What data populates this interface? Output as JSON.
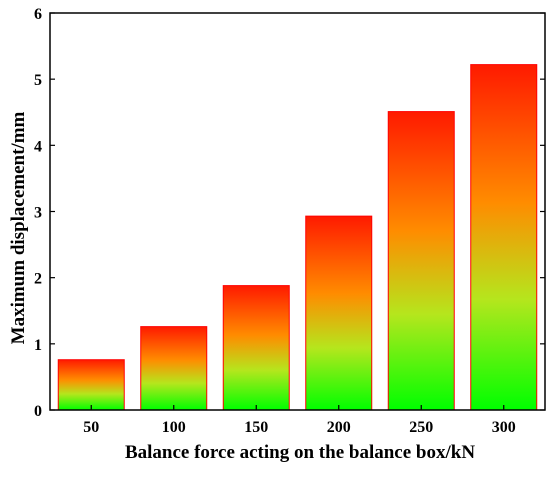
{
  "chart_data": {
    "type": "bar",
    "title": "",
    "xlabel": "Balance force acting on the balance box/kN",
    "ylabel": "Maximum displacement/mm",
    "categories": [
      "50",
      "100",
      "150",
      "200",
      "250",
      "300"
    ],
    "values": [
      0.76,
      1.26,
      1.88,
      2.93,
      4.51,
      5.22
    ],
    "ylim": [
      0,
      6
    ],
    "yticks": [
      "0",
      "1",
      "2",
      "3",
      "4",
      "5",
      "6"
    ],
    "grid": false,
    "legend": "none",
    "colors": {
      "bar_top": "#ff1a00",
      "bar_mid": "#ff8c00",
      "bar_low": "#b5e61d",
      "bar_bottom": "#00ff00",
      "bar_edge": "#ff0000",
      "axis": "#000000"
    }
  }
}
